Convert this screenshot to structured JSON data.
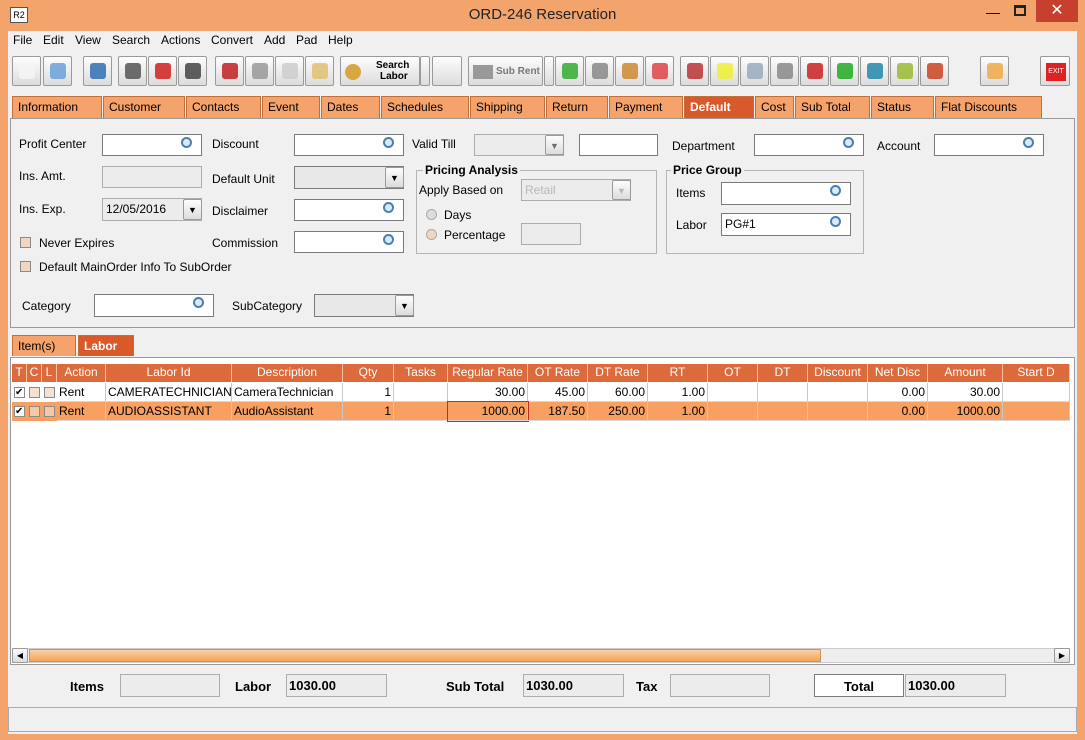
{
  "window": {
    "icon": "R2",
    "title": "ORD-246 Reservation"
  },
  "menu": [
    "File",
    "Edit",
    "View",
    "Search",
    "Actions",
    "Convert",
    "Add",
    "Pad",
    "Help"
  ],
  "toolbar": {
    "search_labor": [
      "Search",
      "Labor"
    ],
    "sub_rent": "Sub Rent",
    "exit": "EXIT"
  },
  "tabs": [
    "Information",
    "Customer",
    "Contacts",
    "Event",
    "Dates",
    "Schedules",
    "Shipping",
    "Return",
    "Payment",
    "Default",
    "Cost",
    "Sub Total",
    "Status",
    "Flat Discounts"
  ],
  "active_tab": 9,
  "form": {
    "profit_center": {
      "label": "Profit Center"
    },
    "discount": {
      "label": "Discount"
    },
    "valid_till": {
      "label": "Valid Till"
    },
    "department": {
      "label": "Department"
    },
    "account": {
      "label": "Account"
    },
    "ins_amt": {
      "label": "Ins. Amt."
    },
    "default_unit": {
      "label": "Default Unit"
    },
    "ins_exp": {
      "label": "Ins. Exp.",
      "value": "12/05/2016"
    },
    "disclaimer": {
      "label": "Disclaimer"
    },
    "never_expires": {
      "label": "Never Expires"
    },
    "commission": {
      "label": "Commission"
    },
    "default_mainorder": {
      "label": "Default MainOrder Info To SubOrder"
    },
    "category": {
      "label": "Category"
    },
    "subcategory": {
      "label": "SubCategory"
    }
  },
  "pricing_analysis": {
    "title": "Pricing Analysis",
    "apply_based_on": "Apply Based on",
    "apply_value": "Retail",
    "days": "Days",
    "percentage": "Percentage"
  },
  "price_group": {
    "title": "Price Group",
    "items": "Items",
    "labor": "Labor",
    "labor_value": "PG#1"
  },
  "subtabs": [
    "Item(s)",
    "Labor"
  ],
  "active_subtab": 1,
  "table": {
    "columns": [
      "T",
      "C",
      "L",
      "Action",
      "Labor Id",
      "Description",
      "Qty",
      "Tasks",
      "Regular Rate",
      "OT Rate",
      "DT Rate",
      "RT",
      "OT",
      "DT",
      "Discount",
      "Net Disc",
      "Amount",
      "Start D"
    ],
    "rows": [
      {
        "checked": [
          true,
          false,
          false
        ],
        "cells": [
          "Rent",
          "CAMERATECHNICIAN",
          "CameraTechnician",
          "1",
          null,
          "30.00",
          "45.00",
          "60.00",
          "1.00",
          null,
          null,
          null,
          "0.00",
          "30.00"
        ]
      },
      {
        "checked": [
          true,
          false,
          false
        ],
        "cells": [
          "Rent",
          "AUDIOASSISTANT",
          "AudioAssistant",
          "1",
          null,
          "1000.00",
          "187.50",
          "250.00",
          "1.00",
          null,
          null,
          null,
          "0.00",
          "1000.00"
        ]
      }
    ],
    "selected_row": 1
  },
  "totals": {
    "items": "Items",
    "labor": "Labor",
    "labor_value": "1030.00",
    "sub_total": "Sub Total",
    "sub_total_value": "1030.00",
    "tax": "Tax",
    "total": "Total",
    "total_value": "1030.00"
  }
}
